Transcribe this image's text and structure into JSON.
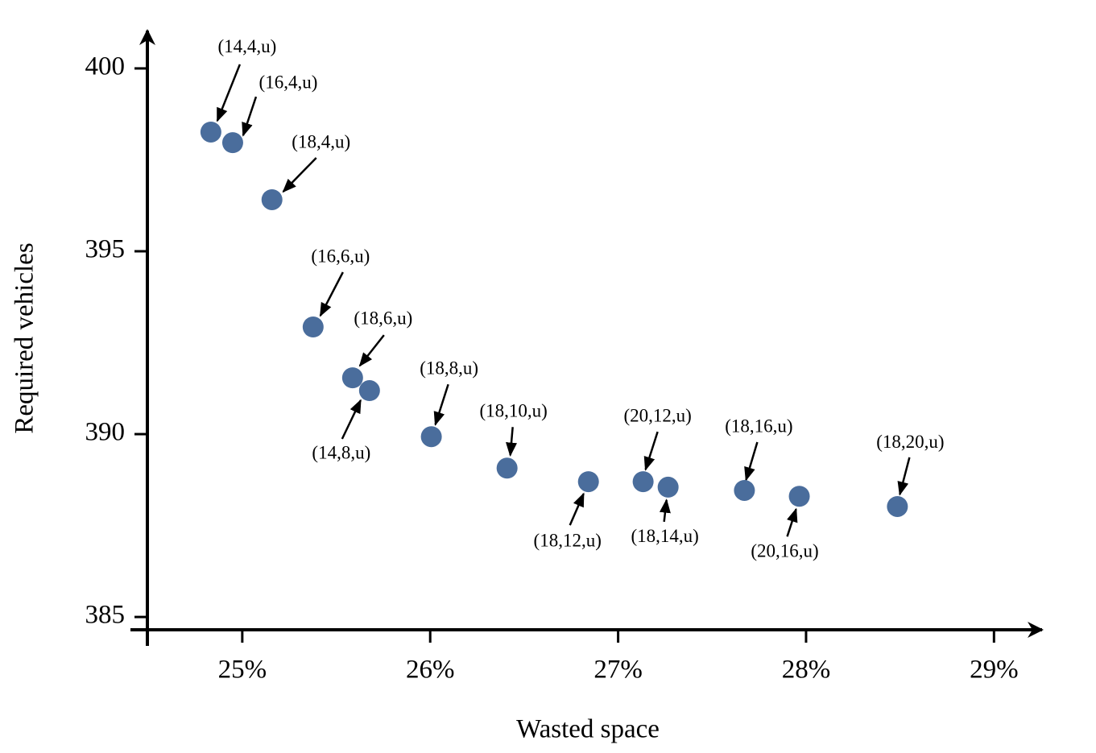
{
  "chart_data": {
    "type": "scatter",
    "xlabel": "Wasted space",
    "ylabel": "Required vehicles",
    "color": "#4a6d9c",
    "xlim": [
      24.495,
      29.26
    ],
    "ylim": [
      384.65,
      401.1
    ],
    "xticks": [
      {
        "value": 25,
        "label": "25%"
      },
      {
        "value": 26,
        "label": "26%"
      },
      {
        "value": 27,
        "label": "27%"
      },
      {
        "value": 28,
        "label": "28%"
      },
      {
        "value": 29,
        "label": "29%"
      }
    ],
    "yticks": [
      385,
      390,
      395,
      400
    ],
    "point_labels": [
      "(14,4,u)",
      "(16,4,u)",
      "(18,4,u)",
      "(16,6,u)",
      "(18,6,u)",
      "(14,8,u)",
      "(18,8,u)",
      "(18,10,u)",
      "(18,12,u)",
      "(20,12,u)",
      "(18,14,u)",
      "(18,16,u)",
      "(20,16,u)",
      "(18,20,u)"
    ],
    "x": [
      24.833,
      24.949,
      25.158,
      25.377,
      25.587,
      25.677,
      26.006,
      26.409,
      26.842,
      27.133,
      27.266,
      27.672,
      27.964,
      28.486
    ],
    "values": [
      398.26,
      397.97,
      396.41,
      392.93,
      391.54,
      391.19,
      389.93,
      389.07,
      388.7,
      388.7,
      388.55,
      388.46,
      388.3,
      388.02
    ]
  }
}
